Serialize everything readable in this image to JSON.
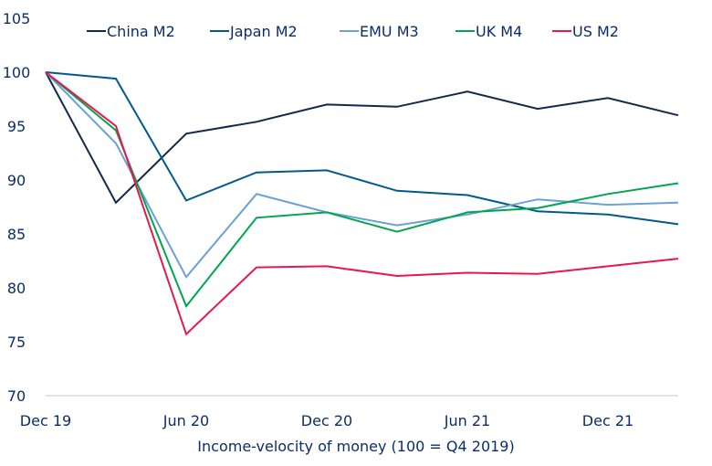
{
  "chart_data": {
    "type": "line",
    "title": "",
    "xlabel": "Income-velocity of money (100 = Q4 2019)",
    "ylabel": "",
    "ylim": [
      70,
      105
    ],
    "yticks": [
      70,
      75,
      80,
      85,
      90,
      95,
      100,
      105
    ],
    "x": [
      "Dec 19",
      "Mar 20",
      "Jun 20",
      "Sep 20",
      "Dec 20",
      "Mar 21",
      "Jun 21",
      "Sep 21",
      "Dec 21",
      "Mar 22"
    ],
    "xtick_labels": [
      {
        "index": 0,
        "label": "Dec 19"
      },
      {
        "index": 2,
        "label": "Jun 20"
      },
      {
        "index": 4,
        "label": "Dec 20"
      },
      {
        "index": 6,
        "label": "Jun 21"
      },
      {
        "index": 8,
        "label": "Dec 21"
      }
    ],
    "grid": false,
    "legend_position": "top",
    "series": [
      {
        "name": "China M2",
        "color": "#13294b",
        "values": [
          100,
          87.9,
          94.3,
          95.4,
          97.0,
          96.8,
          98.2,
          96.6,
          97.6,
          96.0
        ]
      },
      {
        "name": "Japan M2",
        "color": "#005b8c",
        "values": [
          100,
          99.4,
          88.1,
          90.7,
          90.9,
          89.0,
          88.6,
          87.1,
          86.8,
          85.9
        ]
      },
      {
        "name": "EMU M3",
        "color": "#6aa2d8",
        "values": [
          100,
          93.4,
          81.0,
          88.7,
          87.0,
          85.8,
          86.8,
          88.2,
          87.7,
          87.9
        ]
      },
      {
        "name": "UK M4",
        "color": "#00a650",
        "values": [
          100,
          94.6,
          78.3,
          86.5,
          87.0,
          85.2,
          87.0,
          87.4,
          88.7,
          89.7
        ]
      },
      {
        "name": "US M2",
        "color": "#e8174f",
        "values": [
          100,
          95.0,
          75.7,
          81.9,
          82.0,
          81.1,
          81.4,
          81.3,
          82.0,
          82.7
        ]
      }
    ]
  }
}
